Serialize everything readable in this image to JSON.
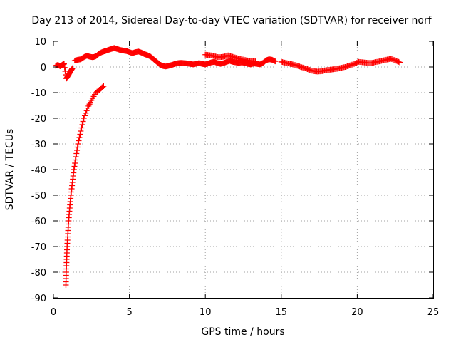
{
  "chart_data": {
    "type": "scatter",
    "title": "Day 213 of 2014, Sidereal Day-to-day VTEC variation (SDTVAR) for receiver norf",
    "xlabel": "GPS time / hours",
    "ylabel": "SDTVAR / TECUs",
    "xlim": [
      0,
      25
    ],
    "ylim": [
      -90,
      10
    ],
    "x_ticks": [
      0,
      5,
      10,
      15,
      20,
      25
    ],
    "y_ticks": [
      10,
      0,
      -10,
      -20,
      -30,
      -40,
      -50,
      -60,
      -70,
      -80,
      -90
    ],
    "grid": true,
    "legend": "none",
    "marker": "plus",
    "series": [
      {
        "name": "SDTVAR",
        "color": "#ff0000",
        "points": [
          [
            0.15,
            0.5
          ],
          [
            0.3,
            0.8
          ],
          [
            0.45,
            0.3
          ],
          [
            0.6,
            0.9
          ],
          [
            0.7,
            1.2
          ],
          [
            0.85,
            -4.5
          ],
          [
            0.95,
            -3.5
          ],
          [
            1.05,
            -2.5
          ],
          [
            1.15,
            -1.5
          ],
          [
            1.25,
            -0.5
          ],
          [
            0.82,
            -85.0
          ],
          [
            0.84,
            -80.0
          ],
          [
            0.87,
            -75.0
          ],
          [
            0.9,
            -70.0
          ],
          [
            0.95,
            -65.0
          ],
          [
            1.0,
            -60.0
          ],
          [
            1.07,
            -55.0
          ],
          [
            1.15,
            -50.0
          ],
          [
            1.25,
            -45.0
          ],
          [
            1.35,
            -40.0
          ],
          [
            1.48,
            -35.0
          ],
          [
            1.62,
            -30.0
          ],
          [
            1.8,
            -25.0
          ],
          [
            2.0,
            -20.0
          ],
          [
            2.25,
            -16.0
          ],
          [
            2.5,
            -13.0
          ],
          [
            2.8,
            -10.0
          ],
          [
            3.1,
            -8.5
          ],
          [
            3.3,
            -7.5
          ],
          [
            1.4,
            2.5
          ],
          [
            1.6,
            2.8
          ],
          [
            1.8,
            3.0
          ],
          [
            2.0,
            3.8
          ],
          [
            2.2,
            4.4
          ],
          [
            2.4,
            4.0
          ],
          [
            2.6,
            3.8
          ],
          [
            2.8,
            4.2
          ],
          [
            3.0,
            5.2
          ],
          [
            3.2,
            5.8
          ],
          [
            3.4,
            6.2
          ],
          [
            3.6,
            6.6
          ],
          [
            3.8,
            7.0
          ],
          [
            4.0,
            7.4
          ],
          [
            4.2,
            7.0
          ],
          [
            4.4,
            6.6
          ],
          [
            4.6,
            6.4
          ],
          [
            4.8,
            6.2
          ],
          [
            5.0,
            5.8
          ],
          [
            5.2,
            5.4
          ],
          [
            5.4,
            5.8
          ],
          [
            5.6,
            6.0
          ],
          [
            5.8,
            5.6
          ],
          [
            6.0,
            5.0
          ],
          [
            6.2,
            4.6
          ],
          [
            6.4,
            4.0
          ],
          [
            6.6,
            3.0
          ],
          [
            6.8,
            2.0
          ],
          [
            7.0,
            1.0
          ],
          [
            7.2,
            0.4
          ],
          [
            7.4,
            0.2
          ],
          [
            7.6,
            0.5
          ],
          [
            7.8,
            0.8
          ],
          [
            8.0,
            1.2
          ],
          [
            8.2,
            1.5
          ],
          [
            8.4,
            1.6
          ],
          [
            8.6,
            1.5
          ],
          [
            8.8,
            1.4
          ],
          [
            9.0,
            1.2
          ],
          [
            9.2,
            1.0
          ],
          [
            9.4,
            1.3
          ],
          [
            9.6,
            1.5
          ],
          [
            9.8,
            1.2
          ],
          [
            10.0,
            1.0
          ],
          [
            10.2,
            1.4
          ],
          [
            10.4,
            1.8
          ],
          [
            10.6,
            2.0
          ],
          [
            10.8,
            1.5
          ],
          [
            11.0,
            1.2
          ],
          [
            11.2,
            1.5
          ],
          [
            11.4,
            2.0
          ],
          [
            11.6,
            2.4
          ],
          [
            11.8,
            2.0
          ],
          [
            12.0,
            1.8
          ],
          [
            12.2,
            1.6
          ],
          [
            12.4,
            1.8
          ],
          [
            12.6,
            1.6
          ],
          [
            12.8,
            1.2
          ],
          [
            13.0,
            1.0
          ],
          [
            13.2,
            1.4
          ],
          [
            13.4,
            1.2
          ],
          [
            13.6,
            1.0
          ],
          [
            13.8,
            1.6
          ],
          [
            14.0,
            2.6
          ],
          [
            14.2,
            3.0
          ],
          [
            14.4,
            2.8
          ],
          [
            14.6,
            2.2
          ],
          [
            10.0,
            4.8
          ],
          [
            10.3,
            4.6
          ],
          [
            10.6,
            4.2
          ],
          [
            10.9,
            3.8
          ],
          [
            11.2,
            4.0
          ],
          [
            11.5,
            4.5
          ],
          [
            11.8,
            4.0
          ],
          [
            12.1,
            3.4
          ],
          [
            12.4,
            3.0
          ],
          [
            12.7,
            2.6
          ],
          [
            13.0,
            2.4
          ],
          [
            13.3,
            2.2
          ],
          [
            15.0,
            2.0
          ],
          [
            15.3,
            1.6
          ],
          [
            15.6,
            1.2
          ],
          [
            15.9,
            0.8
          ],
          [
            16.2,
            0.2
          ],
          [
            16.5,
            -0.4
          ],
          [
            16.8,
            -1.0
          ],
          [
            17.1,
            -1.6
          ],
          [
            17.4,
            -1.8
          ],
          [
            17.7,
            -1.6
          ],
          [
            18.0,
            -1.2
          ],
          [
            18.3,
            -1.0
          ],
          [
            18.6,
            -0.8
          ],
          [
            18.9,
            -0.4
          ],
          [
            19.2,
            0.0
          ],
          [
            19.5,
            0.6
          ],
          [
            19.8,
            1.2
          ],
          [
            20.1,
            2.0
          ],
          [
            20.4,
            1.8
          ],
          [
            20.7,
            1.6
          ],
          [
            21.0,
            1.6
          ],
          [
            21.3,
            2.0
          ],
          [
            21.6,
            2.4
          ],
          [
            21.9,
            2.8
          ],
          [
            22.2,
            3.2
          ],
          [
            22.5,
            2.6
          ],
          [
            22.8,
            1.8
          ]
        ]
      }
    ]
  }
}
